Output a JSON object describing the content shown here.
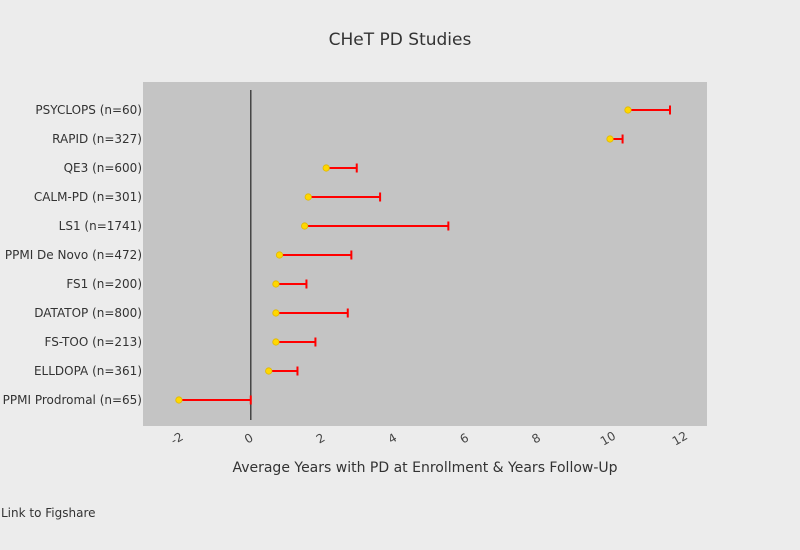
{
  "footer": {
    "link_label": "Link to Figshare"
  },
  "chart_data": {
    "type": "scatter",
    "title": "CHeT PD Studies",
    "xlabel": "Average Years with PD at Enrollment & Years Follow-Up",
    "ylabel": "",
    "xlim": [
      -3,
      12.7
    ],
    "xticks": [
      -2,
      0,
      2,
      4,
      6,
      8,
      10,
      12
    ],
    "xtick_labels": [
      "-2",
      "0",
      "2",
      "4",
      "6",
      "8",
      "10",
      "12"
    ],
    "grid": false,
    "zero_line": true,
    "colors": {
      "marker": "#ffd700",
      "error_bar": "#ff0000",
      "plot_bg": "#c4c4c4",
      "page_bg": "#ececec"
    },
    "categories": [
      "PSYCLOPS (n=60)",
      "RAPID (n=327)",
      "QE3 (n=600)",
      "CALM-PD (n=301)",
      "LS1 (n=1741)",
      "PPMI De Novo (n=472)",
      "FS1 (n=200)",
      "DATATOP (n=800)",
      "FS-TOO (n=213)",
      "ELLDOPA (n=361)",
      "PPMI Prodromal (n=65)"
    ],
    "series": [
      {
        "x": [
          10.5,
          10.0,
          2.1,
          1.6,
          1.5,
          0.8,
          0.7,
          0.7,
          0.7,
          0.5,
          -2.0
        ],
        "error_plus": [
          1.17,
          0.35,
          0.85,
          2.0,
          4.0,
          2.0,
          0.85,
          2.0,
          1.1,
          0.8,
          2.0
        ]
      }
    ]
  }
}
